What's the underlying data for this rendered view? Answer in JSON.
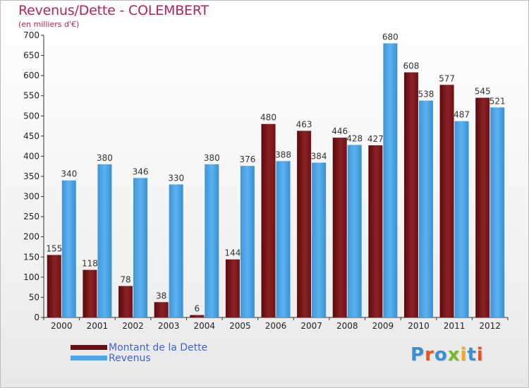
{
  "title": "Revenus/Dette - COLEMBERT",
  "subtitle": "(en milliers d'€)",
  "colors": {
    "title": "#b2235a",
    "dette": "#7a1518",
    "revenus": "#4ea7e8",
    "legend_text": "#3f5fe0"
  },
  "logo": {
    "letters": [
      "P",
      "r",
      "o",
      "x",
      "i",
      "t",
      "i"
    ]
  },
  "chart_data": {
    "type": "bar",
    "categories": [
      "2000",
      "2001",
      "2002",
      "2003",
      "2004",
      "2005",
      "2006",
      "2007",
      "2008",
      "2009",
      "2010",
      "2011",
      "2012"
    ],
    "series": [
      {
        "name": "Montant de la Dette",
        "values": [
          155,
          118,
          78,
          38,
          6,
          144,
          480,
          463,
          446,
          427,
          608,
          577,
          545
        ]
      },
      {
        "name": "Revenus",
        "values": [
          340,
          380,
          346,
          330,
          380,
          376,
          388,
          384,
          428,
          680,
          538,
          487,
          521
        ]
      }
    ],
    "ylim": [
      0,
      700
    ],
    "yticks": [
      0,
      50,
      100,
      150,
      200,
      250,
      300,
      350,
      400,
      450,
      500,
      550,
      600,
      650,
      700
    ],
    "grid": false,
    "legend": "bottom-left"
  }
}
